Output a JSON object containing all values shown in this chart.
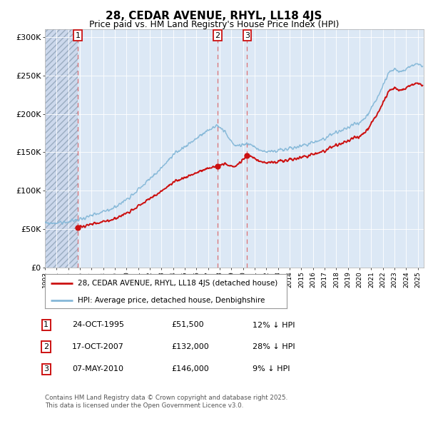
{
  "title": "28, CEDAR AVENUE, RHYL, LL18 4JS",
  "subtitle": "Price paid vs. HM Land Registry's House Price Index (HPI)",
  "ylim": [
    0,
    310000
  ],
  "yticks": [
    0,
    50000,
    100000,
    150000,
    200000,
    250000,
    300000
  ],
  "ytick_labels": [
    "£0",
    "£50K",
    "£100K",
    "£150K",
    "£200K",
    "£250K",
    "£300K"
  ],
  "sale_dates": [
    1995.81,
    2007.79,
    2010.35
  ],
  "sale_prices": [
    51500,
    132000,
    146000
  ],
  "sale_labels": [
    "1",
    "2",
    "3"
  ],
  "hpi_color": "#85b8d8",
  "sale_color": "#cc1111",
  "dashed_color": "#dd5555",
  "legend_label_sale": "28, CEDAR AVENUE, RHYL, LL18 4JS (detached house)",
  "legend_label_hpi": "HPI: Average price, detached house, Denbighshire",
  "table_rows": [
    [
      "1",
      "24-OCT-1995",
      "£51,500",
      "12% ↓ HPI"
    ],
    [
      "2",
      "17-OCT-2007",
      "£132,000",
      "28% ↓ HPI"
    ],
    [
      "3",
      "07-MAY-2010",
      "£146,000",
      "9% ↓ HPI"
    ]
  ],
  "footer_line1": "Contains HM Land Registry data © Crown copyright and database right 2025.",
  "footer_line2": "This data is licensed under the Open Government Licence v3.0.",
  "plot_bg": "#dce8f5",
  "hatch_bg": "#ccd8ec"
}
